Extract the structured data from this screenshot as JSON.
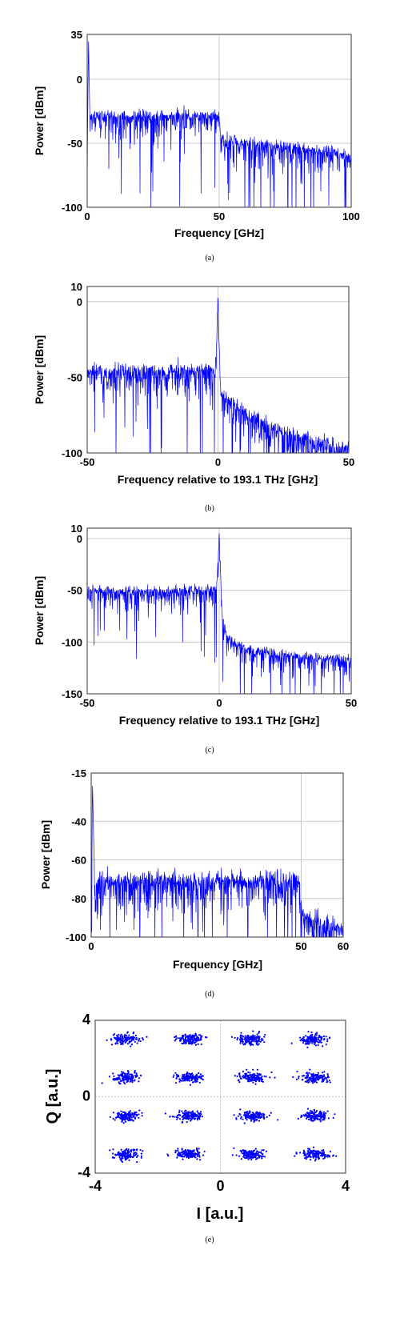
{
  "chart_data": [
    {
      "type": "line",
      "label": "(a)",
      "xlabel": "Frequency [GHz]",
      "ylabel": "Power [dBm]",
      "xlim": [
        0,
        100
      ],
      "ylim": [
        -100,
        35
      ],
      "xticks": [
        "0",
        "50",
        "100"
      ],
      "yticks": [
        "35",
        "0",
        "-50",
        "-100"
      ],
      "color": "#0000ff",
      "grid": true,
      "series": [
        {
          "x": [
            0,
            0.5,
            1,
            2,
            10,
            25,
            40,
            49.5,
            50,
            50.5,
            52,
            60,
            75,
            90,
            98,
            100
          ],
          "y": [
            -70,
            30,
            -28,
            -28,
            -28,
            -28,
            -28,
            -28,
            -28,
            -45,
            -47,
            -49,
            -52,
            -55,
            -58,
            -60
          ]
        }
      ]
    },
    {
      "type": "line",
      "label": "(b)",
      "xlabel": "Frequency relative to 193.1 THz [GHz]",
      "ylabel": "Power [dBm]",
      "xlim": [
        -50,
        50
      ],
      "ylim": [
        -100,
        10
      ],
      "xticks": [
        "-50",
        "0",
        "50"
      ],
      "yticks": [
        "10",
        "0",
        "-50",
        "-100"
      ],
      "color": "#0000ff",
      "grid": true,
      "series": [
        {
          "x": [
            -50,
            -40,
            -30,
            -20,
            -10,
            -1,
            0,
            1,
            5,
            10,
            20,
            30,
            40,
            50
          ],
          "y": [
            -45,
            -45,
            -45,
            -45,
            -45,
            -45,
            5,
            -60,
            -65,
            -72,
            -82,
            -88,
            -93,
            -96
          ]
        }
      ]
    },
    {
      "type": "line",
      "label": "(c)",
      "xlabel": "Frequency relative to 193.1 THz [GHz]",
      "ylabel": "Power [dBm]",
      "xlim": [
        -50,
        50
      ],
      "ylim": [
        -150,
        10
      ],
      "xticks": [
        "-50",
        "0",
        "50"
      ],
      "yticks": [
        "10",
        "0",
        "-50",
        "-100",
        "-150"
      ],
      "color": "#0000ff",
      "grid": true,
      "series": [
        {
          "x": [
            -50,
            -40,
            -30,
            -20,
            -10,
            -1,
            0,
            1,
            3,
            5,
            10,
            20,
            30,
            40,
            50
          ],
          "y": [
            -50,
            -50,
            -50,
            -50,
            -50,
            -48,
            5,
            -70,
            -95,
            -100,
            -105,
            -110,
            -113,
            -115,
            -117
          ]
        }
      ]
    },
    {
      "type": "line",
      "label": "(d)",
      "xlabel": "Frequency [GHz]",
      "ylabel": "Power [dBm]",
      "xlim": [
        0,
        60
      ],
      "ylim": [
        -100,
        -15
      ],
      "xticks": [
        "0",
        "50",
        "60"
      ],
      "yticks": [
        "-15",
        "-40",
        "-60",
        "-80",
        "-100"
      ],
      "color": "#0000ff",
      "grid": true,
      "series": [
        {
          "x": [
            0,
            0.3,
            0.8,
            5,
            15,
            25,
            35,
            45,
            49.5,
            50,
            50.5,
            55,
            60
          ],
          "y": [
            -90,
            -20,
            -70,
            -70,
            -70,
            -70,
            -70,
            -70,
            -70,
            -85,
            -88,
            -92,
            -96
          ]
        }
      ]
    },
    {
      "type": "scatter",
      "label": "(e)",
      "xlabel": "I [a.u.]",
      "ylabel": "Q [a.u.]",
      "xlim": [
        -4,
        4
      ],
      "ylim": [
        -4,
        4
      ],
      "xticks": [
        "-4",
        "0",
        "4"
      ],
      "yticks": [
        "4",
        "0",
        "-4"
      ],
      "color": "#0000ff",
      "grid": true,
      "constellation": "16-QAM",
      "cluster_centers_i": [
        -3,
        -1,
        1,
        3
      ],
      "cluster_centers_q": [
        -3,
        -1,
        1,
        3
      ]
    }
  ]
}
